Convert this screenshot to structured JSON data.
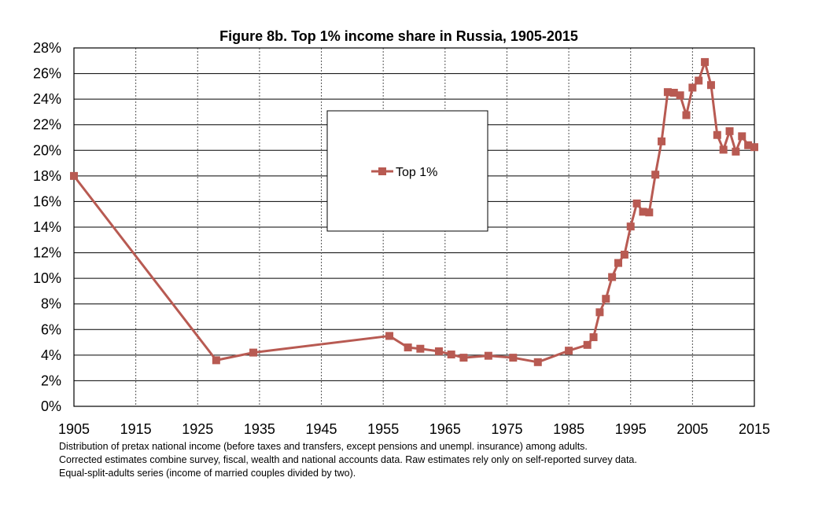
{
  "chart_data": {
    "type": "line",
    "title": "Figure 8b. Top 1% income share in Russia, 1905-2015",
    "xlabel": "",
    "ylabel": "",
    "xlim": [
      1905,
      2015
    ],
    "ylim": [
      0,
      28
    ],
    "x_ticks": [
      "1905",
      "1915",
      "1925",
      "1935",
      "1945",
      "1955",
      "1965",
      "1975",
      "1985",
      "1995",
      "2005",
      "2015"
    ],
    "y_ticks": [
      "0%",
      "2%",
      "4%",
      "6%",
      "8%",
      "10%",
      "12%",
      "14%",
      "16%",
      "18%",
      "20%",
      "22%",
      "24%",
      "26%",
      "28%"
    ],
    "grid": true,
    "legend_placement": "center",
    "series": [
      {
        "name": "Top 1%",
        "color": "#b85a52",
        "marker": "square",
        "x": [
          1905,
          1928,
          1934,
          1956,
          1959,
          1961,
          1964,
          1966,
          1968,
          1972,
          1976,
          1980,
          1985,
          1988,
          1989,
          1990,
          1991,
          1992,
          1993,
          1994,
          1995,
          1996,
          1997,
          1998,
          1999,
          2000,
          2001,
          2002,
          2003,
          2004,
          2005,
          2006,
          2007,
          2008,
          2009,
          2010,
          2011,
          2012,
          2013,
          2014,
          2015
        ],
        "y": [
          18.0,
          3.6,
          4.2,
          5.5,
          4.6,
          4.5,
          4.3,
          4.05,
          3.8,
          3.95,
          3.8,
          3.45,
          4.35,
          4.8,
          5.4,
          7.35,
          8.4,
          10.1,
          11.2,
          11.85,
          14.05,
          15.85,
          15.2,
          15.15,
          18.1,
          20.7,
          24.55,
          24.5,
          24.3,
          22.75,
          24.9,
          25.45,
          26.9,
          25.1,
          21.2,
          20.05,
          21.5,
          19.9,
          21.1,
          20.4,
          20.25
        ]
      }
    ]
  },
  "footnotes": [
    "Distribution of pretax national income (before taxes and transfers, except pensions and unempl. insurance) among adults.",
    "Corrected estimates combine survey, fiscal, wealth and national accounts data. Raw estimates rely only on self-reported survey data.",
    "Equal-split-adults series (income of married couples divided by two)."
  ]
}
